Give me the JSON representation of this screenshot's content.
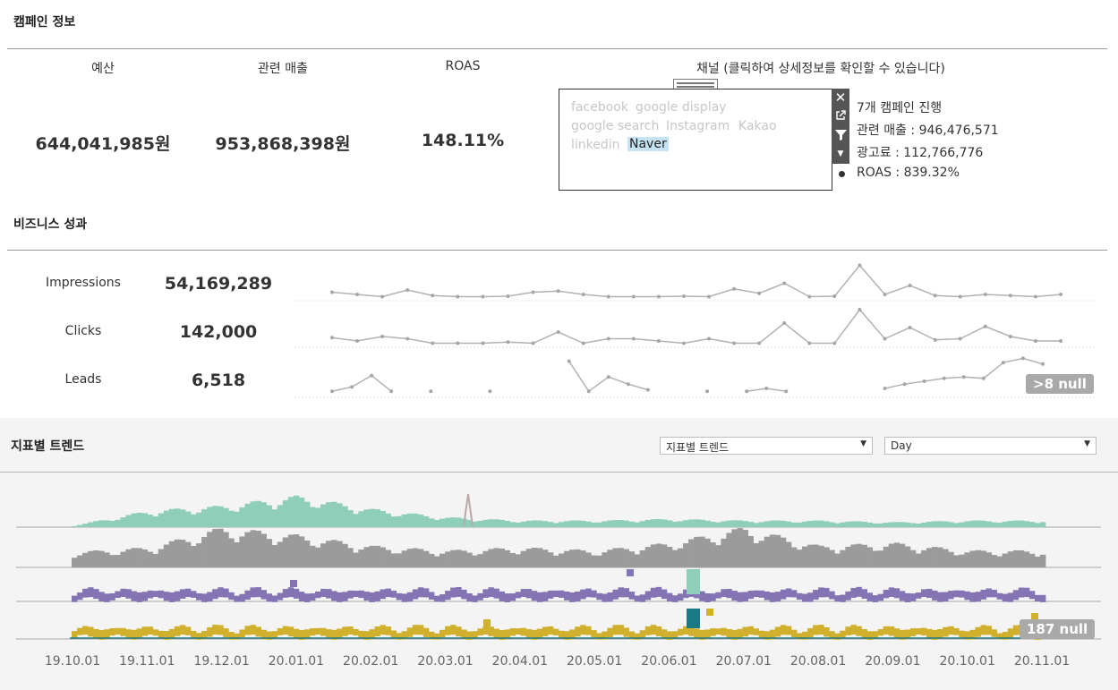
{
  "campaign": {
    "title": "캠페인 정보",
    "kpis": [
      {
        "label": "예산",
        "value": "644,041,985원"
      },
      {
        "label": "관련 매출",
        "value": "953,868,398원"
      },
      {
        "label": "ROAS",
        "value": "148.11%"
      }
    ],
    "channel": {
      "title": "채널 (클릭하여 상세정보를 확인할 수 있습니다)",
      "options": [
        "facebook",
        "google display",
        "google search",
        "Instagram",
        "Kakao",
        "linkedin",
        "Naver"
      ],
      "selected": "Naver",
      "info": [
        "7개 캠페인 진행",
        "관련 매출 : 946,476,571",
        "광고료 : 112,766,776",
        "ROAS : 839.32%"
      ]
    }
  },
  "business": {
    "title": "비즈니스 성과",
    "metrics": [
      {
        "label": "Impressions",
        "value": "54,169,289"
      },
      {
        "label": "Clicks",
        "value": "142,000"
      },
      {
        "label": "Leads",
        "value": "6,518"
      }
    ],
    "null_badge": ">8 null"
  },
  "trend": {
    "title": "지표별 트렌드",
    "metric_select": "지표별 트렌드",
    "granularity_select": "Day",
    "null_badge": "187 null",
    "colors": {
      "teal": "#8fcfb9",
      "gray": "#9b9b9b",
      "purple": "#8474b4",
      "gold": "#d0b02c",
      "dark_teal": "#1b7a86"
    }
  },
  "chart_data": [
    {
      "type": "line",
      "title": "",
      "series": [
        {
          "name": "Impressions",
          "values": [
            0.3,
            0.2,
            0.1,
            0.4,
            0.15,
            0.1,
            0.1,
            0.12,
            0.3,
            0.35,
            0.2,
            0.1,
            0.1,
            0.1,
            0.12,
            0.1,
            0.45,
            0.25,
            0.7,
            0.1,
            0.12,
            1.5,
            0.2,
            0.6,
            0.15,
            0.1,
            0.2,
            0.15,
            0.1,
            0.2
          ]
        },
        {
          "name": "Clicks",
          "values": [
            0.35,
            0.2,
            0.4,
            0.3,
            0.1,
            0.1,
            0.1,
            0.15,
            0.1,
            0.6,
            0.1,
            0.3,
            0.3,
            0.2,
            0.1,
            0.3,
            0.1,
            0.1,
            1.0,
            0.1,
            0.1,
            1.6,
            0.3,
            0.8,
            0.25,
            0.3,
            0.85,
            0.4,
            0.2,
            0.2
          ]
        }
      ]
    },
    {
      "type": "line",
      "title": "",
      "series": [
        {
          "name": "Leads",
          "values": [
            0.3,
            0.6,
            1.4,
            0.3,
            null,
            0.3,
            null,
            null,
            0.3,
            null,
            null,
            null,
            2.4,
            0.3,
            1.3,
            0.8,
            0.4,
            null,
            null,
            0.3,
            null,
            0.3,
            0.5,
            0.3,
            null,
            null,
            null,
            null,
            0.5,
            0.8,
            1.0,
            1.2,
            1.3,
            1.2,
            2.3,
            2.6,
            2.2
          ]
        }
      ]
    },
    {
      "type": "bar",
      "x": [
        "19.10.01",
        "19.11.01",
        "19.12.01",
        "20.01.01",
        "20.02.01",
        "20.03.01",
        "20.04.01",
        "20.05.01",
        "20.06.01",
        "20.07.01",
        "20.08.01",
        "20.09.01",
        "20.10.01",
        "20.11.01"
      ],
      "series": [
        {
          "name": "",
          "values": [
            0.1,
            1.0,
            1.3,
            1.9,
            1.1,
            0.6,
            0.4,
            0.4,
            0.5,
            0.4,
            0.4,
            0.3,
            0.4,
            0.4
          ]
        },
        {
          "name": "",
          "values": [
            1.0,
            1.3,
            2.6,
            2.1,
            1.4,
            1.1,
            1.3,
            1.1,
            1.6,
            2.6,
            1.4,
            1.6,
            1.1,
            1.1
          ]
        },
        {
          "name": "",
          "values": [
            1.0,
            1.0,
            1.0,
            1.0,
            1.0,
            1.0,
            1.0,
            1.0,
            1.0,
            1.0,
            1.0,
            1.0,
            1.0,
            1.0
          ]
        },
        {
          "name": "",
          "values": [
            1.0,
            1.0,
            1.0,
            1.0,
            1.0,
            1.0,
            1.0,
            1.0,
            1.0,
            1.0,
            1.0,
            1.0,
            1.0,
            1.0
          ]
        }
      ]
    }
  ]
}
